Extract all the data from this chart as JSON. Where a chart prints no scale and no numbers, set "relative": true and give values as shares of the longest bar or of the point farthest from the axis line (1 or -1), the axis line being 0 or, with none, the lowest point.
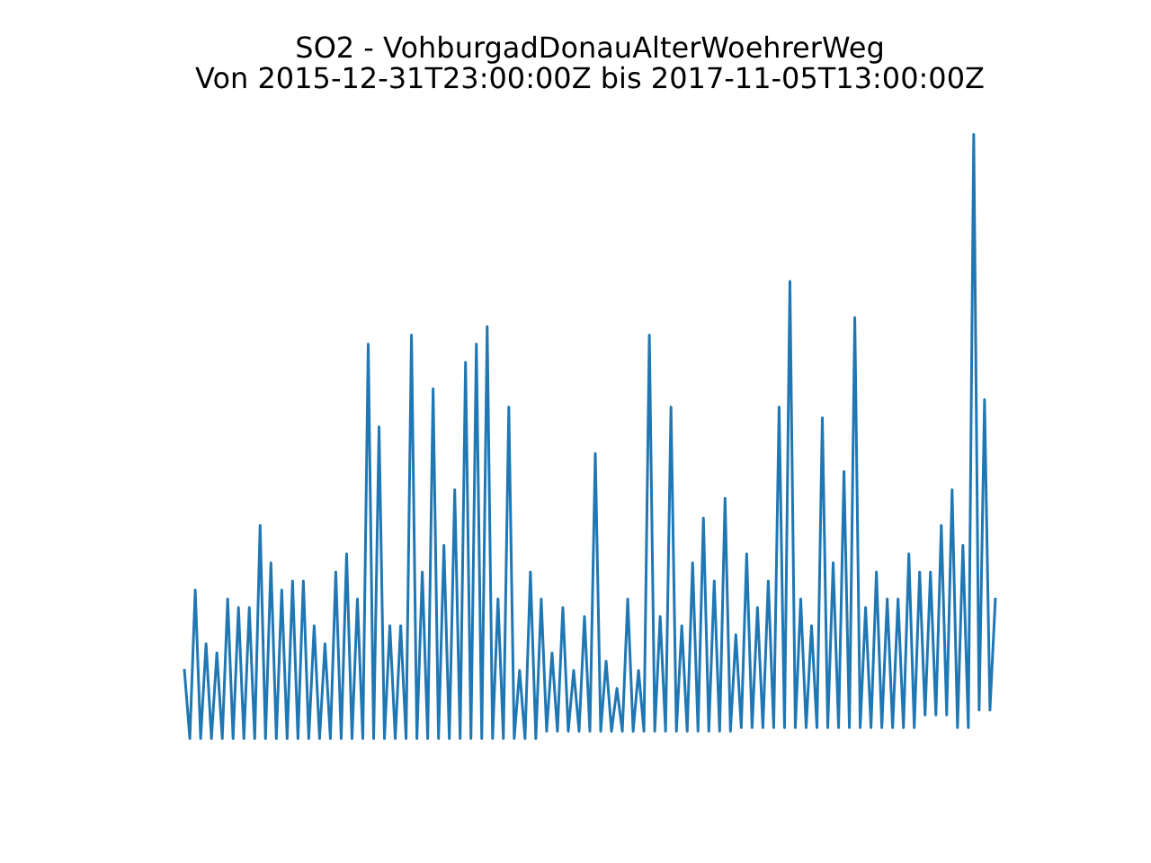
{
  "chart_data": {
    "type": "line",
    "title": "SO2 - VohburgadDonauAlterWoehrerWeg",
    "subtitle": "Von 2015-12-31T23:00:00Z bis 2017-11-05T13:00:00Z",
    "relative": true,
    "color": "#1f77b4",
    "categories": [
      null,
      null,
      null,
      null,
      null,
      null,
      null,
      null,
      null,
      null,
      null,
      null,
      null,
      null,
      null,
      null,
      null,
      null,
      null,
      null,
      null,
      null,
      null,
      null,
      null,
      null,
      null,
      null,
      null,
      null,
      null,
      null,
      null,
      null,
      null,
      null,
      null,
      null,
      null,
      null,
      null,
      null,
      null,
      null,
      null,
      null,
      null,
      null,
      null,
      null,
      null,
      null,
      null,
      null,
      null,
      null,
      null,
      null,
      null,
      null,
      null,
      null,
      null,
      null,
      null,
      null,
      null,
      null,
      null,
      null,
      null,
      null,
      null,
      null,
      null,
      null,
      null,
      null,
      null,
      null,
      null,
      null,
      null,
      null,
      null,
      null,
      null,
      null,
      null,
      null,
      null,
      null,
      null,
      null,
      null,
      null,
      null,
      null,
      null,
      null,
      null,
      null,
      null,
      null,
      null,
      null,
      null,
      null,
      null,
      null,
      null,
      null,
      null,
      null,
      null,
      null,
      null,
      null,
      null,
      null,
      null,
      null,
      null,
      null,
      null,
      null,
      null,
      null,
      null,
      null,
      null,
      null,
      null,
      null,
      null,
      null,
      null,
      null,
      null,
      null,
      null,
      null,
      null,
      null,
      null,
      null,
      null,
      null,
      null,
      null,
      null
    ],
    "values": [
      0.113,
      0,
      0.246,
      0,
      0.157,
      0,
      0.142,
      0,
      0.231,
      0,
      0.217,
      0,
      0.217,
      0,
      0.353,
      0,
      0.291,
      0,
      0.246,
      0,
      0.261,
      0,
      0.261,
      0,
      0.187,
      0,
      0.157,
      0,
      0.276,
      0,
      0.306,
      0,
      0.231,
      0,
      0.653,
      0,
      0.516,
      0,
      0.187,
      0,
      0.187,
      0,
      0.668,
      0,
      0.276,
      0,
      0.579,
      0,
      0.32,
      0,
      0.412,
      0,
      0.623,
      0,
      0.653,
      0,
      0.682,
      0,
      0.231,
      0,
      0.549,
      0,
      0.113,
      0,
      0.276,
      0,
      0.231,
      0.012,
      0.142,
      0.012,
      0.217,
      0.012,
      0.113,
      0.012,
      0.202,
      0.012,
      0.472,
      0.012,
      0.128,
      0.012,
      0.083,
      0.012,
      0.231,
      0.012,
      0.113,
      0.012,
      0.668,
      0.012,
      0.202,
      0.012,
      0.549,
      0.012,
      0.187,
      0.012,
      0.291,
      0.012,
      0.365,
      0.012,
      0.261,
      0.012,
      0.398,
      0.012,
      0.172,
      0.018,
      0.306,
      0.018,
      0.217,
      0.018,
      0.261,
      0.018,
      0.549,
      0.018,
      0.757,
      0.018,
      0.231,
      0.018,
      0.187,
      0.018,
      0.531,
      0.018,
      0.291,
      0.018,
      0.442,
      0.018,
      0.697,
      0.018,
      0.217,
      0.018,
      0.276,
      0.018,
      0.231,
      0.018,
      0.231,
      0.018,
      0.306,
      0.018,
      0.276,
      0.039,
      0.276,
      0.039,
      0.353,
      0.039,
      0.412,
      0.018,
      0.32,
      0.018,
      1,
      0.047,
      0.561,
      0.047,
      0.231
    ]
  }
}
